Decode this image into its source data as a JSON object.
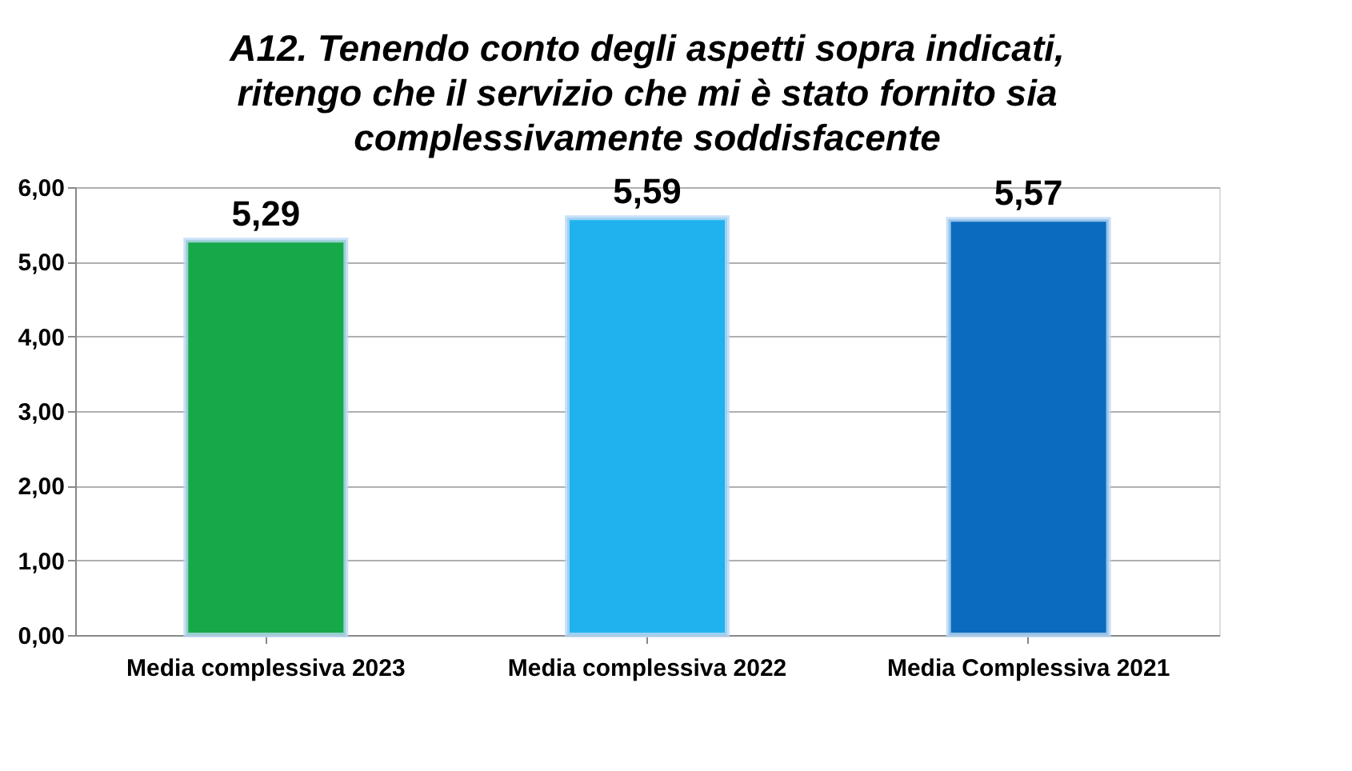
{
  "chart_data": {
    "type": "bar",
    "title": "A12. Tenendo conto degli aspetti sopra indicati,\nritengo che il servizio che mi è stato fornito sia\ncomplessivamente soddisfacente",
    "categories": [
      "Media complessiva 2023",
      "Media complessiva 2022",
      "Media Complessiva 2021"
    ],
    "values": [
      5.29,
      5.59,
      5.57
    ],
    "colors": [
      "#17a84a",
      "#1fb2ee",
      "#0b6cbf"
    ],
    "value_labels": [
      "5,29",
      "5,59",
      "5,57"
    ],
    "ylim": [
      0,
      6
    ],
    "yticks": [
      {
        "value": 0,
        "label": "0,00"
      },
      {
        "value": 1,
        "label": "1,00"
      },
      {
        "value": 2,
        "label": "2,00"
      },
      {
        "value": 3,
        "label": "3,00"
      },
      {
        "value": 4,
        "label": "4,00"
      },
      {
        "value": 5,
        "label": "5,00"
      },
      {
        "value": 6,
        "label": "6,00"
      }
    ],
    "grid": "y",
    "legend": false
  }
}
